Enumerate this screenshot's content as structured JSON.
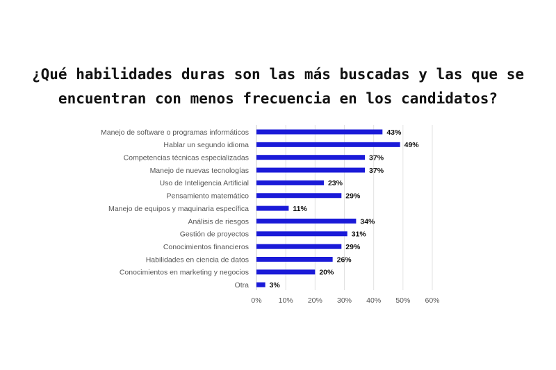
{
  "title_lines": [
    "¿Qué habilidades duras son las más buscadas y las que se",
    "encuentran con menos frecuencia en los candidatos?"
  ],
  "chart_data": {
    "type": "bar",
    "orientation": "horizontal",
    "title": "¿Qué habilidades duras son las más buscadas y las que se encuentran con menos frecuencia en los candidatos?",
    "categories": [
      "Manejo de software o programas informáticos",
      "Hablar un segundo idioma",
      "Competencias técnicas especializadas",
      "Manejo de nuevas tecnologías",
      "Uso de Inteligencia Artificial",
      "Pensamiento matemático",
      "Manejo de equipos y maquinaria específica",
      "Análisis de riesgos",
      "Gestión de proyectos",
      "Conocimientos financieros",
      "Habilidades en ciencia de datos",
      "Conocimientos en marketing y negocios",
      "Otra"
    ],
    "values": [
      43,
      49,
      37,
      37,
      23,
      29,
      11,
      34,
      31,
      29,
      26,
      20,
      3
    ],
    "data_labels": [
      "43%",
      "49%",
      "37%",
      "37%",
      "23%",
      "29%",
      "11%",
      "34%",
      "31%",
      "29%",
      "26%",
      "20%",
      "3%"
    ],
    "xlim": [
      0,
      60
    ],
    "xticks": [
      0,
      10,
      20,
      30,
      40,
      50,
      60
    ],
    "xtick_labels": [
      "0%",
      "10%",
      "20%",
      "30%",
      "40%",
      "50%",
      "60%"
    ],
    "grid": "vertical",
    "legend": "none",
    "bar_color": "#1a1ad8"
  }
}
